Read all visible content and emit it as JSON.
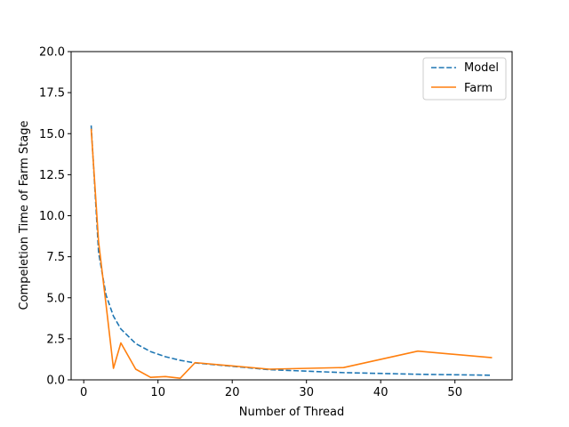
{
  "chart_data": {
    "type": "line",
    "xlabel": "Number of Thread",
    "ylabel": "Compeletion Time of Farm Stage",
    "xlim": [
      -1.7,
      57.7
    ],
    "ylim": [
      0,
      20
    ],
    "xticks": [
      0,
      10,
      20,
      30,
      40,
      50
    ],
    "yticks": [
      0.0,
      2.5,
      5.0,
      7.5,
      10.0,
      12.5,
      15.0,
      17.5,
      20.0
    ],
    "xtick_labels": [
      "0",
      "10",
      "20",
      "30",
      "40",
      "50"
    ],
    "ytick_labels": [
      "0.0",
      "2.5",
      "5.0",
      "7.5",
      "10.0",
      "12.5",
      "15.0",
      "17.5",
      "20.0"
    ],
    "grid": false,
    "legend_position": "top-right",
    "series": [
      {
        "name": "Model",
        "color": "#1f77b4",
        "style": "dashed",
        "x": [
          1,
          2,
          3,
          4,
          5,
          7,
          9,
          11,
          13,
          15,
          25,
          35,
          45,
          55
        ],
        "y": [
          15.5,
          7.75,
          5.17,
          3.88,
          3.1,
          2.21,
          1.72,
          1.41,
          1.19,
          1.03,
          0.62,
          0.44,
          0.34,
          0.28
        ]
      },
      {
        "name": "Farm",
        "color": "#ff7f0e",
        "style": "solid",
        "x": [
          1,
          2,
          3,
          4,
          5,
          7,
          9,
          11,
          13,
          15,
          25,
          35,
          45,
          55
        ],
        "y": [
          15.3,
          8.4,
          4.6,
          0.7,
          2.25,
          0.65,
          0.15,
          0.2,
          0.1,
          1.05,
          0.65,
          0.75,
          1.75,
          1.35
        ]
      }
    ]
  }
}
